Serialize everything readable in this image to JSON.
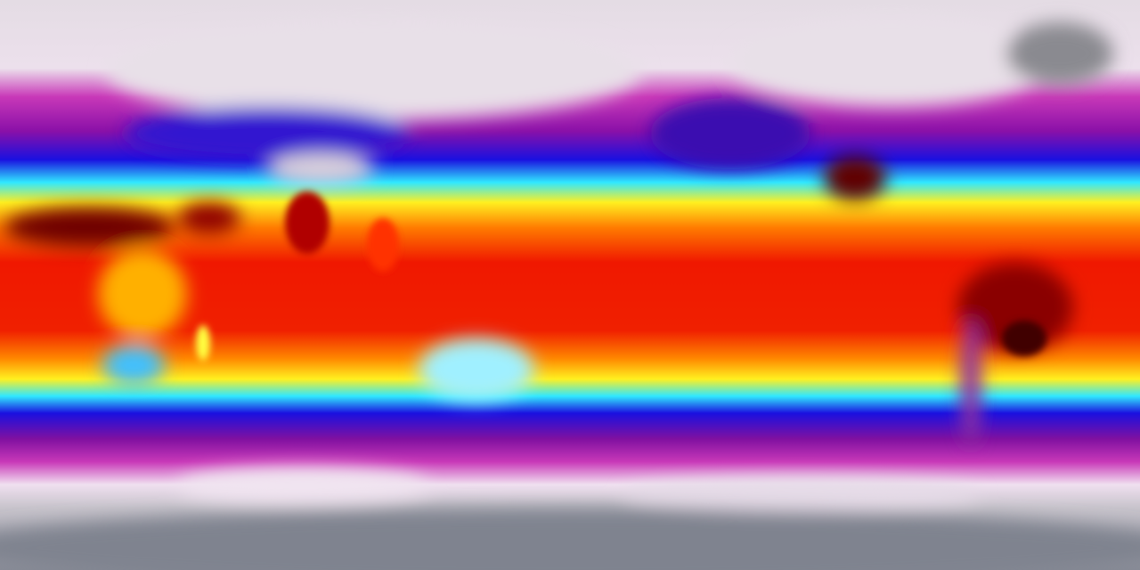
{
  "map": {
    "projection": "equirectangular",
    "extent": "global",
    "colormap": [
      "#8a8d98",
      "#d8d0dc",
      "#f0e4f0",
      "#c020b0",
      "#8010a0",
      "#1010e0",
      "#20e0ff",
      "#ffff20",
      "#ff9000",
      "#f01000",
      "#600000"
    ],
    "colors": {
      "polar": "#d8d0dc",
      "antarctic": "#8a8d98",
      "subpolar": "#b020a8",
      "cold": "#1a10e0",
      "cool": "#30e8ff",
      "mild": "#fff020",
      "warm": "#ff5a00",
      "hot": "#e81000",
      "hottest": "#500000"
    }
  }
}
